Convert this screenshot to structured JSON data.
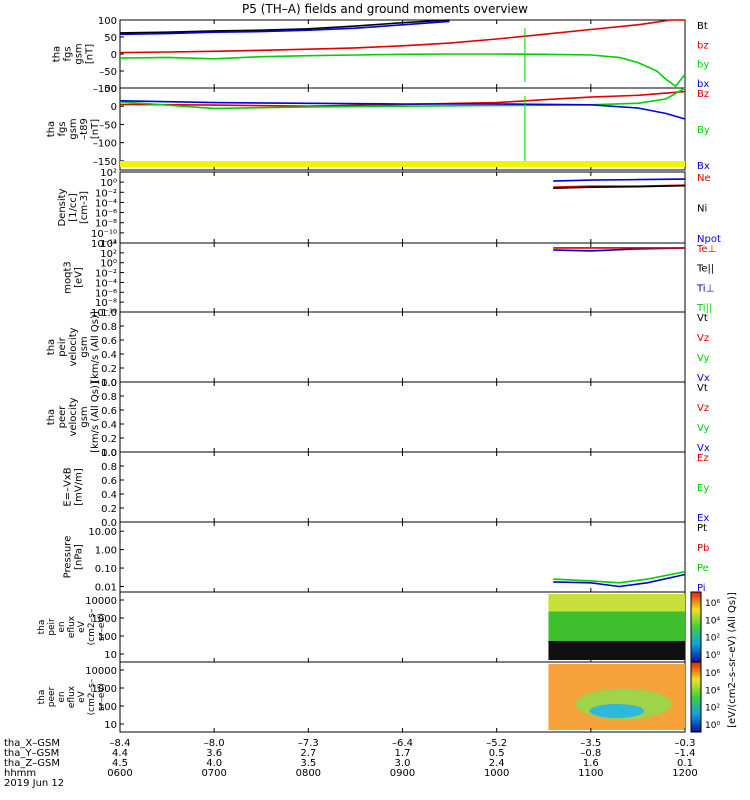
{
  "title": "P5 (TH–A) fields and ground moments overview",
  "chart_data": {
    "type": "line",
    "title": "P5 (TH–A) fields and ground moments overview",
    "date": "2019 Jun 12",
    "x_range": [
      0,
      6
    ],
    "x_unit": "hours since 0600 UT",
    "bottom_rows": [
      {
        "label": "tha_X–GSM",
        "values": [
          "–8.4",
          "–8.0",
          "–7.3",
          "–6.4",
          "–5.2",
          "–3.5",
          "–0.3"
        ]
      },
      {
        "label": "tha_Y–GSM",
        "values": [
          "4.4",
          "3.6",
          "2.7",
          "1.7",
          "0.5",
          "–0.8",
          "–1.4"
        ]
      },
      {
        "label": "tha_Z–GSM",
        "values": [
          "4.5",
          "4.0",
          "3.5",
          "3.0",
          "2.4",
          "1.6",
          "0.1"
        ]
      },
      {
        "label": "hhmm",
        "values": [
          "0600",
          "0700",
          "0800",
          "0900",
          "1000",
          "1100",
          "1200"
        ]
      }
    ],
    "panels": [
      {
        "id": "fgs-gsm",
        "ylabel": [
          "tha",
          "fgs",
          "gsm",
          "[nT]"
        ],
        "ylim": [
          -100,
          100
        ],
        "yticks": [
          "100",
          "50",
          "0",
          "–50",
          "–100"
        ],
        "legend": [
          {
            "label": "Bt",
            "color": "#000000"
          },
          {
            "label": "bz",
            "color": "#e00000"
          },
          {
            "label": "by",
            "color": "#00d000"
          },
          {
            "label": "bx",
            "color": "#0000e0"
          }
        ],
        "series": [
          {
            "name": "Bt",
            "color": "#000000",
            "x": [
              0,
              0.5,
              1.0,
              1.5,
              2.0,
              2.5,
              3.0,
              3.5
            ],
            "y": [
              62,
              64,
              68,
              70,
              74,
              82,
              92,
              100
            ]
          },
          {
            "name": "bx",
            "color": "#0000e0",
            "x": [
              0,
              0.5,
              1.0,
              1.5,
              2.0,
              2.5,
              3.0,
              3.5
            ],
            "y": [
              58,
              60,
              64,
              66,
              70,
              76,
              86,
              96
            ]
          },
          {
            "name": "bz",
            "color": "#e00000",
            "x": [
              0,
              0.5,
              1.0,
              1.5,
              2.0,
              2.5,
              3.0,
              3.5,
              4.0,
              4.5,
              5.0,
              5.5,
              5.85,
              6.0
            ],
            "y": [
              4,
              6,
              8,
              11,
              14,
              18,
              24,
              32,
              44,
              58,
              72,
              86,
              100,
              100
            ]
          },
          {
            "name": "by",
            "color": "#00d000",
            "x": [
              0,
              0.5,
              1.0,
              1.5,
              2.0,
              2.5,
              3.0,
              3.5,
              4.0,
              4.5,
              5.0,
              5.3,
              5.5,
              5.7,
              5.8,
              5.9,
              6.0
            ],
            "y": [
              -12,
              -10,
              -14,
              -8,
              -5,
              -3,
              -1,
              0,
              0,
              -1,
              -3,
              -10,
              -25,
              -50,
              -75,
              -95,
              -60
            ]
          }
        ],
        "spike_x": 4.3
      },
      {
        "id": "fgs-gsm-t89",
        "ylabel": [
          "tha",
          "fgs",
          "gsm",
          "–t89",
          "[nT]"
        ],
        "ylim": [
          -175,
          50
        ],
        "yticks": [
          "50",
          "0",
          "–50",
          "–100",
          "–150"
        ],
        "legend": [
          {
            "label": "Bz",
            "color": "#e00000"
          },
          {
            "label": "By",
            "color": "#00d000"
          },
          {
            "label": "Bx",
            "color": "#0000e0"
          }
        ],
        "series": [
          {
            "name": "Bz",
            "color": "#e00000",
            "x": [
              0,
              1,
              2,
              3,
              4,
              4.5,
              5,
              5.5,
              6
            ],
            "y": [
              5,
              3,
              0,
              5,
              10,
              18,
              25,
              30,
              40
            ]
          },
          {
            "name": "By",
            "color": "#00d000",
            "x": [
              0,
              1,
              2,
              3,
              4,
              5,
              5.5,
              5.8,
              6
            ],
            "y": [
              12,
              -6,
              -2,
              0,
              2,
              4,
              8,
              20,
              50
            ]
          },
          {
            "name": "Bx",
            "color": "#0000e0",
            "x": [
              0,
              1,
              2,
              3,
              4,
              5,
              5.5,
              5.8,
              6
            ],
            "y": [
              15,
              10,
              8,
              6,
              6,
              4,
              -5,
              -20,
              -35
            ]
          }
        ],
        "spike_x": 4.3,
        "mode_bar": true
      },
      {
        "id": "density",
        "ylabel": [
          "Density",
          "[1/cc]",
          "[cm-3]"
        ],
        "ylim_log": [
          -12,
          2
        ],
        "yticks": [
          "10²",
          "10⁰",
          "10⁻²",
          "10⁻⁴",
          "10⁻⁶",
          "10⁻⁸",
          "10⁻¹⁰",
          "10⁻¹²"
        ],
        "legend": [
          {
            "label": "Ne",
            "color": "#e00000"
          },
          {
            "label": "Ni",
            "color": "#000000"
          },
          {
            "label": "Npot",
            "color": "#0000e0"
          }
        ],
        "series": [
          {
            "name": "Npot",
            "color": "#0000e0",
            "x": [
              4.6,
              5.0,
              5.5,
              6.0
            ],
            "log10_y": [
              0.2,
              0.4,
              0.5,
              0.6
            ]
          },
          {
            "name": "Ne",
            "color": "#e00000",
            "x": [
              4.6,
              5.0,
              5.5,
              6.0
            ],
            "log10_y": [
              -1.0,
              -0.8,
              -0.8,
              -0.6
            ]
          },
          {
            "name": "Ni",
            "color": "#000000",
            "x": [
              4.6,
              5.0,
              5.5,
              6.0
            ],
            "log10_y": [
              -1.2,
              -1.0,
              -0.9,
              -0.7
            ]
          }
        ]
      },
      {
        "id": "temperature",
        "ylabel": [
          "moqt3",
          "[eV]"
        ],
        "ylim_log": [
          -10,
          4
        ],
        "yticks": [
          "10⁴",
          "10²",
          "10⁰",
          "10⁻²",
          "10⁻⁴",
          "10⁻⁶",
          "10⁻⁸",
          "10⁻¹⁰"
        ],
        "legend": [
          {
            "label": "Te⊥",
            "color": "#e00000"
          },
          {
            "label": "Te||",
            "color": "#000000"
          },
          {
            "label": "Ti⊥",
            "color": "#0000e0"
          },
          {
            "label": "Ti||",
            "color": "#00d000"
          }
        ],
        "series": [
          {
            "name": "Ti⊥",
            "color": "#0000e0",
            "x": [
              4.6,
              5.0,
              5.5,
              6.0
            ],
            "log10_y": [
              2.6,
              2.4,
              2.8,
              3.0
            ]
          },
          {
            "name": "Te⊥",
            "color": "#e00000",
            "x": [
              4.6,
              5.0,
              5.5,
              6.0
            ],
            "log10_y": [
              3.0,
              3.0,
              3.0,
              3.0
            ]
          }
        ]
      },
      {
        "id": "peir-velocity",
        "ylabel": [
          "tha",
          "peir",
          "velocity",
          "gsm",
          "[km/s (All Qs)]"
        ],
        "ylim": [
          0,
          1
        ],
        "yticks": [
          "1.0",
          "0.8",
          "0.6",
          "0.4",
          "0.2",
          "0.0"
        ],
        "legend": [
          {
            "label": "Vt",
            "color": "#000000"
          },
          {
            "label": "Vz",
            "color": "#e00000"
          },
          {
            "label": "Vy",
            "color": "#00d000"
          },
          {
            "label": "Vx",
            "color": "#0000e0"
          }
        ],
        "series": []
      },
      {
        "id": "peer-velocity",
        "ylabel": [
          "tha",
          "peer",
          "velocity",
          "gsm",
          "[km/s (All Qs)]"
        ],
        "ylim": [
          0,
          1
        ],
        "yticks": [
          "1.0",
          "0.8",
          "0.6",
          "0.4",
          "0.2",
          "0.0"
        ],
        "legend": [
          {
            "label": "Vt",
            "color": "#000000"
          },
          {
            "label": "Vz",
            "color": "#e00000"
          },
          {
            "label": "Vy",
            "color": "#00d000"
          },
          {
            "label": "Vx",
            "color": "#0000e0"
          }
        ],
        "series": []
      },
      {
        "id": "efield",
        "ylabel": [
          "E=–VxB",
          "[mV/m]"
        ],
        "ylim": [
          0,
          1
        ],
        "yticks": [
          "1.0",
          "0.8",
          "0.6",
          "0.4",
          "0.2",
          "0.0"
        ],
        "legend": [
          {
            "label": "Ez",
            "color": "#e00000"
          },
          {
            "label": "Ey",
            "color": "#00d000"
          },
          {
            "label": "Ex",
            "color": "#0000e0"
          }
        ],
        "series": []
      },
      {
        "id": "pressure",
        "ylabel": [
          "Pressure",
          "[nPa]"
        ],
        "ylim_log": [
          -2.3,
          1.5
        ],
        "yticks": [
          "10.00",
          "1.00",
          "0.10",
          "0.01"
        ],
        "ytick_log": [
          1,
          0,
          -1,
          -2
        ],
        "legend": [
          {
            "label": "Pt",
            "color": "#000000"
          },
          {
            "label": "Pb",
            "color": "#e00000"
          },
          {
            "label": "Pe",
            "color": "#00d000"
          },
          {
            "label": "Pi",
            "color": "#0000e0"
          }
        ],
        "series": [
          {
            "name": "Pe",
            "color": "#00d000",
            "x": [
              4.6,
              5.0,
              5.3,
              5.6,
              6.0
            ],
            "log10_y": [
              -1.6,
              -1.7,
              -1.8,
              -1.6,
              -1.2
            ]
          },
          {
            "name": "Pi",
            "color": "#0000e0",
            "x": [
              4.6,
              5.0,
              5.3,
              5.6,
              6.0
            ],
            "log10_y": [
              -1.75,
              -1.8,
              -2.0,
              -1.8,
              -1.35
            ]
          }
        ]
      }
    ],
    "spectrograms": [
      {
        "id": "peir-eflux",
        "ylabel": [
          "tha",
          "peir",
          "en",
          "eflux",
          "eV",
          "(cm2–s–",
          "sr–eV)"
        ],
        "yticks": [
          "10000",
          "1000",
          "100",
          "10"
        ],
        "data_start_x": 4.55,
        "palette": "green-yellow-black speckle"
      },
      {
        "id": "peer-eflux",
        "ylabel": [
          "tha",
          "peer",
          "en",
          "eflux",
          "eV",
          "(cm2–s–",
          "sr–eV)"
        ],
        "yticks": [
          "10000",
          "1000",
          "100",
          "10"
        ],
        "data_start_x": 4.55,
        "palette": "orange background with cyan/green core"
      }
    ],
    "colorbar": {
      "label": "[eV/(cm2–s–sr–eV) (All Qs)]",
      "upper_ticks": [
        "10⁶",
        "10⁴",
        "10²",
        "10⁰"
      ],
      "lower_ticks": [
        "10⁶",
        "10⁴",
        "10²",
        "10⁰"
      ]
    }
  }
}
